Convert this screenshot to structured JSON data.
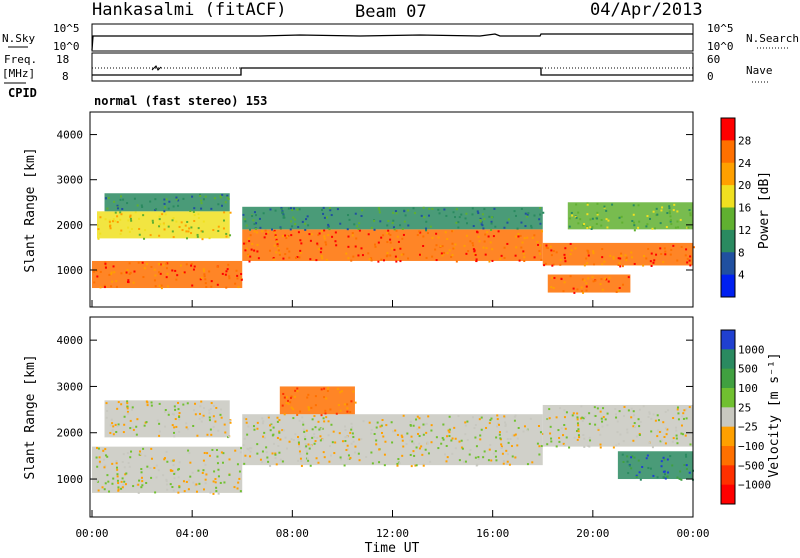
{
  "header": {
    "station": "Hankasalmi (fitACF)",
    "beam": "Beam 07",
    "date": "04/Apr/2013"
  },
  "noise_panel": {
    "left_label": "N.Sky",
    "left_ticks": [
      "10^5",
      "10^0"
    ],
    "right_label": "N.Search",
    "right_ticks": [
      "10^5",
      "10^0"
    ]
  },
  "freq_panel": {
    "left_label_1": "Freq.",
    "left_label_2": "[MHz]",
    "left_ticks": [
      "18",
      "8"
    ],
    "right_label": "Nave",
    "right_ticks": [
      "60",
      "0"
    ]
  },
  "cpid": {
    "label": "CPID",
    "mode": "normal (fast stereo) 153"
  },
  "chart_data": [
    {
      "type": "heatmap",
      "panel": "power",
      "ylabel": "Slant Range [km]",
      "ylim": [
        180,
        4500
      ],
      "y_ticks": [
        "4000",
        "3000",
        "2000",
        "1000"
      ],
      "x_range_hours": [
        0,
        24
      ],
      "colorbar_label": "Power [dB]",
      "colorbar_ticks": [
        "28",
        "24",
        "20",
        "16",
        "12",
        "8",
        "4"
      ],
      "colorbar_colors": [
        "#ff0000",
        "#ff7000",
        "#ffa000",
        "#f0e020",
        "#60b030",
        "#2a8a60",
        "#2050a0",
        "#0020f0"
      ],
      "echo_bands": [
        {
          "t_start": 0.0,
          "t_end": 6.0,
          "r_low": 600,
          "r_high": 1200,
          "value": 28
        },
        {
          "t_start": 0.2,
          "t_end": 5.5,
          "r_low": 1700,
          "r_high": 2300,
          "value": 18
        },
        {
          "t_start": 0.5,
          "t_end": 5.5,
          "r_low": 2300,
          "r_high": 2700,
          "value": 12
        },
        {
          "t_start": 6.0,
          "t_end": 18.0,
          "r_low": 1200,
          "r_high": 1900,
          "value": 26
        },
        {
          "t_start": 6.0,
          "t_end": 18.0,
          "r_low": 1900,
          "r_high": 2400,
          "value": 12
        },
        {
          "t_start": 18.0,
          "t_end": 24.0,
          "r_low": 1100,
          "r_high": 1600,
          "value": 26
        },
        {
          "t_start": 19.0,
          "t_end": 24.0,
          "r_low": 1900,
          "r_high": 2500,
          "value": 14
        },
        {
          "t_start": 18.2,
          "t_end": 21.5,
          "r_low": 500,
          "r_high": 900,
          "value": 28
        }
      ]
    },
    {
      "type": "heatmap",
      "panel": "velocity",
      "ylabel": "Slant Range [km]",
      "ylim": [
        180,
        4500
      ],
      "y_ticks": [
        "4000",
        "3000",
        "2000",
        "1000"
      ],
      "x_range_hours": [
        0,
        24
      ],
      "xlabel": "Time UT",
      "x_ticks": [
        "00:00",
        "04:00",
        "08:00",
        "12:00",
        "16:00",
        "20:00",
        "00:00"
      ],
      "colorbar_label": "Velocity [m s⁻¹]",
      "colorbar_ticks": [
        "1000",
        "500",
        "100",
        "25",
        "−25",
        "−100",
        "−500",
        "−1000"
      ],
      "colorbar_colors": [
        "#2040d0",
        "#2a8a60",
        "#40a040",
        "#70c030",
        "#c8c8c0",
        "#ffa000",
        "#ff7000",
        "#ff3000",
        "#ff0000"
      ],
      "echo_bands": [
        {
          "t_start": 0.0,
          "t_end": 6.0,
          "r_low": 700,
          "r_high": 1700,
          "value": 0
        },
        {
          "t_start": 0.5,
          "t_end": 5.5,
          "r_low": 1900,
          "r_high": 2700,
          "value": 0
        },
        {
          "t_start": 6.0,
          "t_end": 18.0,
          "r_low": 1300,
          "r_high": 2400,
          "value": 0
        },
        {
          "t_start": 7.5,
          "t_end": 10.5,
          "r_low": 2400,
          "r_high": 3000,
          "value": -300
        },
        {
          "t_start": 18.0,
          "t_end": 24.0,
          "r_low": 1700,
          "r_high": 2600,
          "value": 0
        },
        {
          "t_start": 21.0,
          "t_end": 24.0,
          "r_low": 1000,
          "r_high": 1600,
          "value": 400
        }
      ]
    }
  ]
}
